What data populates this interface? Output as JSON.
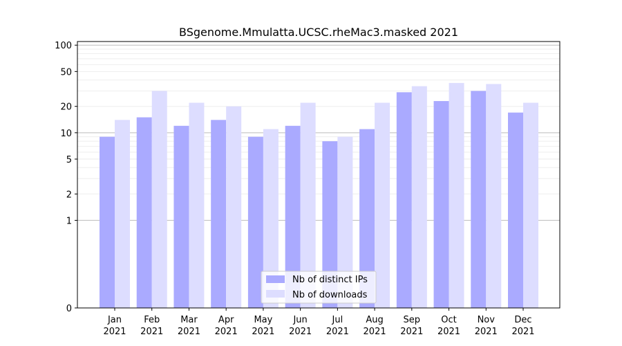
{
  "chart_data": {
    "type": "bar",
    "title": "BSgenome.Mmulatta.UCSC.rheMac3.masked 2021",
    "xlabel": "",
    "ylabel": "",
    "yscale": "symlog",
    "ylim": [
      0,
      110
    ],
    "yticks": [
      0,
      1,
      2,
      5,
      10,
      20,
      50,
      100
    ],
    "grid": true,
    "legend_position": "bottom-center",
    "categories": [
      [
        "Jan",
        "2021"
      ],
      [
        "Feb",
        "2021"
      ],
      [
        "Mar",
        "2021"
      ],
      [
        "Apr",
        "2021"
      ],
      [
        "May",
        "2021"
      ],
      [
        "Jun",
        "2021"
      ],
      [
        "Jul",
        "2021"
      ],
      [
        "Aug",
        "2021"
      ],
      [
        "Sep",
        "2021"
      ],
      [
        "Oct",
        "2021"
      ],
      [
        "Nov",
        "2021"
      ],
      [
        "Dec",
        "2021"
      ]
    ],
    "series": [
      {
        "name": "Nb of distinct IPs",
        "color": "#aaaaff",
        "values": [
          9,
          15,
          12,
          14,
          9,
          12,
          8,
          11,
          29,
          23,
          30,
          17
        ]
      },
      {
        "name": "Nb of downloads",
        "color": "#ddddff",
        "values": [
          14,
          30,
          22,
          20,
          11,
          22,
          9,
          22,
          34,
          37,
          36,
          22
        ]
      }
    ]
  }
}
